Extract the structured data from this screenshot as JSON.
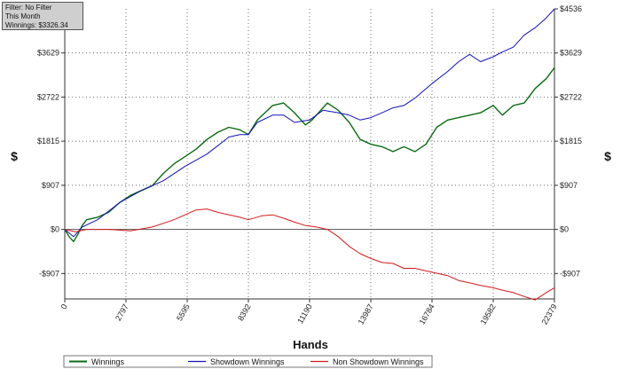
{
  "info": {
    "filter": "Filter: No Filter",
    "period": "This Month",
    "winnings": "Winnings: $3326.34"
  },
  "colors": {
    "background": "#ffffff",
    "grid": "#333333",
    "zero_line": "#555555",
    "winnings": "#0a6b12",
    "showdown": "#1111bb",
    "non_showdown": "#d41a1a",
    "info_box": "#cfcfcf"
  },
  "chart_data": {
    "type": "line",
    "title": "",
    "xlabel": "Hands",
    "ylabel": "$",
    "xlim": [
      0,
      22379
    ],
    "ylim": [
      -1430,
      4536
    ],
    "x_ticks": [
      0,
      2797,
      5595,
      8392,
      11190,
      13987,
      16784,
      19582,
      22379
    ],
    "x_tick_labels": [
      "0",
      "2797",
      "5595",
      "8392",
      "11190",
      "13987",
      "16784",
      "19582",
      "22379"
    ],
    "y_ticks": [
      -907,
      0,
      907,
      1815,
      2722,
      3629,
      4536
    ],
    "y_tick_labels": [
      "-$907",
      "$0",
      "$907",
      "$1815",
      "$2722",
      "$3629",
      "$4536"
    ],
    "grid": true,
    "legend_position": "bottom",
    "series": [
      {
        "name": "Winnings",
        "color": "#0a6b12",
        "x": [
          0,
          200,
          400,
          600,
          800,
          1000,
          1500,
          2000,
          2500,
          3000,
          3500,
          4000,
          4500,
          5000,
          5500,
          6000,
          6500,
          7000,
          7500,
          8000,
          8392,
          8800,
          9500,
          10000,
          10500,
          11000,
          11300,
          12000,
          12500,
          13000,
          13500,
          14000,
          14500,
          15000,
          15500,
          16000,
          16500,
          17000,
          17500,
          18000,
          18500,
          19000,
          19582,
          20000,
          20500,
          21000,
          21500,
          22000,
          22379
        ],
        "y": [
          0,
          -150,
          -250,
          -100,
          80,
          200,
          250,
          350,
          550,
          700,
          800,
          900,
          1150,
          1350,
          1500,
          1650,
          1850,
          2000,
          2100,
          2050,
          1950,
          2250,
          2550,
          2600,
          2400,
          2150,
          2250,
          2600,
          2450,
          2200,
          1850,
          1750,
          1700,
          1600,
          1700,
          1600,
          1750,
          2100,
          2250,
          2300,
          2350,
          2400,
          2550,
          2350,
          2550,
          2600,
          2900,
          3100,
          3326
        ]
      },
      {
        "name": "Showdown Winnings",
        "color": "#1111bb",
        "x": [
          0,
          400,
          800,
          1500,
          2500,
          3500,
          4500,
          5500,
          6500,
          7500,
          8000,
          8392,
          8800,
          9500,
          10000,
          10500,
          11190,
          11800,
          12500,
          13000,
          13500,
          13987,
          14500,
          15000,
          15500,
          16000,
          16784,
          17500,
          18000,
          18500,
          19000,
          19582,
          20000,
          20500,
          21000,
          21500,
          22000,
          22379
        ],
        "y": [
          0,
          -150,
          50,
          200,
          550,
          800,
          1000,
          1300,
          1550,
          1900,
          1950,
          1950,
          2200,
          2350,
          2350,
          2200,
          2250,
          2450,
          2400,
          2350,
          2250,
          2300,
          2400,
          2500,
          2550,
          2700,
          3000,
          3250,
          3450,
          3600,
          3450,
          3550,
          3650,
          3750,
          4000,
          4150,
          4350,
          4536
        ]
      },
      {
        "name": "Non Showdown Winnings",
        "color": "#d41a1a",
        "x": [
          0,
          500,
          1000,
          2000,
          3000,
          4000,
          5000,
          5595,
          6000,
          6500,
          7000,
          8000,
          8392,
          9000,
          9500,
          10000,
          10500,
          11000,
          11500,
          12000,
          12500,
          13000,
          13500,
          14000,
          14500,
          15000,
          15500,
          16000,
          16784,
          17500,
          18000,
          18500,
          19000,
          19582,
          20000,
          20500,
          21000,
          21500,
          22000,
          22379
        ],
        "y": [
          0,
          -50,
          0,
          0,
          -30,
          50,
          200,
          320,
          400,
          420,
          350,
          250,
          200,
          280,
          300,
          230,
          150,
          80,
          50,
          0,
          -150,
          -350,
          -500,
          -600,
          -680,
          -700,
          -800,
          -800,
          -880,
          -950,
          -1050,
          -1100,
          -1150,
          -1200,
          -1250,
          -1300,
          -1380,
          -1450,
          -1300,
          -1200
        ]
      }
    ]
  }
}
